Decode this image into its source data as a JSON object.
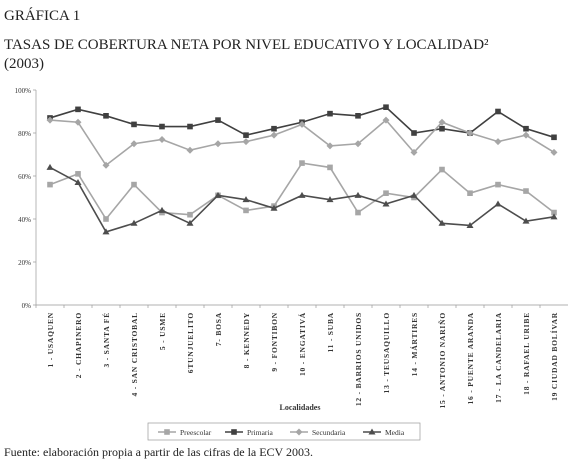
{
  "chart_data": {
    "type": "line",
    "title": "GRÁFICA 1",
    "subtitle": "TASAS DE COBERTURA NETA POR NIVEL EDUCATIVO Y LOCALIDAD²",
    "year": "(2003)",
    "x_label": "Localidades",
    "source": "Fuente: elaboración propia a partir de las cifras de la ECV 2003.",
    "categories": [
      "1 - USAQUEN",
      "2 - CHAPINERO",
      "3 - SANTA FÉ",
      "4 - SAN CRISTOBAL",
      "5 - USME",
      "6TUNJUELITO",
      "7- BOSA",
      "8 - KENNEDY",
      "9 - FONTIBON",
      "10 - ENGATIVÁ",
      "11 - SUBA",
      "12 - BARRIOS UNIDOS",
      "13 - TEUSAQUILLO",
      "14 - MÁRTIRES",
      "15 - ANTONIO NARIÑO",
      "16 - PUENTE ARANDA",
      "17 - LA CANDELARIA",
      "18 - RAFAEL URIBE",
      "19 CIUDAD BOLÍVAR"
    ],
    "series": [
      {
        "name": "Preescolar",
        "color": "#a6a6a6",
        "marker": "square",
        "values": [
          56,
          61,
          40,
          56,
          43,
          42,
          51,
          44,
          46,
          66,
          64,
          43,
          52,
          50,
          63,
          52,
          56,
          53,
          43
        ]
      },
      {
        "name": "Primaria",
        "color": "#404040",
        "marker": "square",
        "values": [
          87,
          91,
          88,
          84,
          83,
          83,
          86,
          79,
          82,
          85,
          89,
          88,
          92,
          80,
          82,
          80,
          90,
          82,
          78
        ]
      },
      {
        "name": "Secundaria",
        "color": "#a6a6a6",
        "marker": "diamond",
        "values": [
          86,
          85,
          65,
          75,
          77,
          72,
          75,
          76,
          79,
          84,
          74,
          75,
          86,
          71,
          85,
          80,
          76,
          79,
          71
        ]
      },
      {
        "name": "Media",
        "color": "#4d4d4d",
        "marker": "triangle",
        "values": [
          64,
          57,
          34,
          38,
          44,
          38,
          51,
          49,
          45,
          51,
          49,
          51,
          47,
          51,
          38,
          37,
          47,
          39,
          41
        ]
      }
    ],
    "ylim": [
      0,
      100
    ],
    "yticks": [
      {
        "value": 0,
        "label": "0%"
      },
      {
        "value": 20,
        "label": "20%"
      },
      {
        "value": 40,
        "label": "40%"
      },
      {
        "value": 60,
        "label": "60%"
      },
      {
        "value": 80,
        "label": "80%"
      },
      {
        "value": 100,
        "label": "100%"
      }
    ]
  }
}
